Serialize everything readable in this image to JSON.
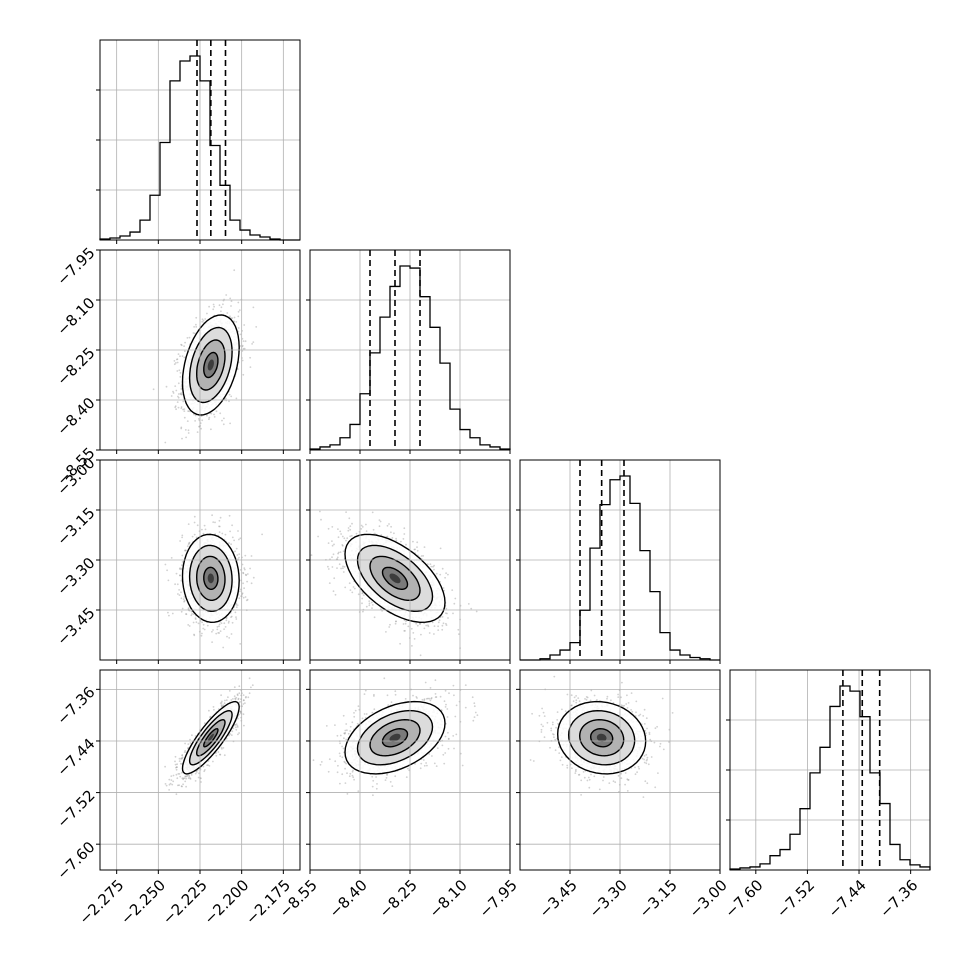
{
  "chart_data": {
    "type": "corner",
    "grid": true,
    "n_params": 4,
    "params": [
      {
        "index": 0,
        "median": -2.2185,
        "q16": -2.2268,
        "q84": -2.2097,
        "range": [
          -2.285,
          -2.165
        ],
        "ticks": [
          -2.275,
          -2.25,
          -2.225,
          -2.2,
          -2.175
        ],
        "tick_labels": [
          "−2.275",
          "−2.250",
          "−2.225",
          "−2.200",
          "−2.175"
        ]
      },
      {
        "index": 1,
        "median": -8.295,
        "q16": -8.37,
        "q84": -8.22,
        "range": [
          -8.55,
          -7.95
        ],
        "ticks": [
          -8.55,
          -8.4,
          -8.25,
          -8.1,
          -7.95
        ],
        "tick_labels": [
          "−8.55",
          "−8.40",
          "−8.25",
          "−8.10",
          "−7.95"
        ]
      },
      {
        "index": 2,
        "median": -3.355,
        "q16": -3.42,
        "q84": -3.288,
        "range": [
          -3.6,
          -3.0
        ],
        "ticks": [
          -3.45,
          -3.3,
          -3.15,
          -3.0
        ],
        "tick_labels": [
          "−3.45",
          "−3.30",
          "−3.15",
          "−3.00"
        ]
      },
      {
        "index": 3,
        "median": -7.435,
        "q16": -7.465,
        "q84": -7.408,
        "range": [
          -7.64,
          -7.33
        ],
        "ticks": [
          -7.6,
          -7.52,
          -7.44,
          -7.36
        ],
        "tick_labels": [
          "−7.60",
          "−7.52",
          "−7.44",
          "−7.36"
        ]
      }
    ],
    "histograms": [
      {
        "param": 0,
        "counts": [
          1,
          2,
          4,
          8,
          20,
          45,
          98,
          160,
          180,
          185,
          160,
          95,
          55,
          20,
          10,
          5,
          3,
          1,
          0,
          0
        ]
      },
      {
        "param": 1,
        "counts": [
          1,
          3,
          5,
          12,
          25,
          55,
          95,
          130,
          160,
          180,
          178,
          150,
          120,
          85,
          40,
          20,
          12,
          5,
          3,
          1
        ]
      },
      {
        "param": 2,
        "counts": [
          0,
          0,
          1,
          4,
          8,
          14,
          40,
          90,
          125,
          145,
          148,
          126,
          88,
          55,
          22,
          8,
          4,
          2,
          1,
          0
        ]
      },
      {
        "param": 3,
        "counts": [
          1,
          2,
          3,
          6,
          14,
          20,
          35,
          60,
          95,
          120,
          160,
          180,
          175,
          150,
          95,
          65,
          25,
          10,
          5,
          3
        ]
      }
    ],
    "pairs": [
      {
        "x_param": 0,
        "y_param": 1,
        "rho": 0.35
      },
      {
        "x_param": 0,
        "y_param": 2,
        "rho": -0.05
      },
      {
        "x_param": 1,
        "y_param": 2,
        "rho": -0.55
      },
      {
        "x_param": 0,
        "y_param": 3,
        "rho": 0.85
      },
      {
        "x_param": 1,
        "y_param": 3,
        "rho": 0.4
      },
      {
        "x_param": 2,
        "y_param": 3,
        "rho": -0.1
      }
    ],
    "sigma": [
      0.0085,
      0.075,
      0.066,
      0.028
    ],
    "contour_levels_sigma": [
      0.5,
      1.0,
      1.5,
      2.0
    ],
    "colors": {
      "frame": "#000000",
      "grid": "#b0b0b0",
      "points": "#999999"
    }
  }
}
